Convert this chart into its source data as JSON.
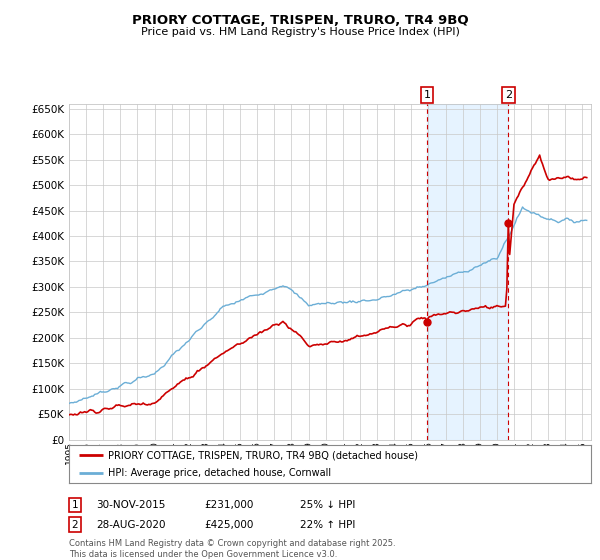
{
  "title": "PRIORY COTTAGE, TRISPEN, TRURO, TR4 9BQ",
  "subtitle": "Price paid vs. HM Land Registry's House Price Index (HPI)",
  "legend_line1": "PRIORY COTTAGE, TRISPEN, TRURO, TR4 9BQ (detached house)",
  "legend_line2": "HPI: Average price, detached house, Cornwall",
  "annotation1_date": "30-NOV-2015",
  "annotation1_price": "£231,000",
  "annotation1_hpi": "25% ↓ HPI",
  "annotation2_date": "28-AUG-2020",
  "annotation2_price": "£425,000",
  "annotation2_hpi": "22% ↑ HPI",
  "footer": "Contains HM Land Registry data © Crown copyright and database right 2025.\nThis data is licensed under the Open Government Licence v3.0.",
  "ylim": [
    0,
    660000
  ],
  "yticks": [
    0,
    50000,
    100000,
    150000,
    200000,
    250000,
    300000,
    350000,
    400000,
    450000,
    500000,
    550000,
    600000,
    650000
  ],
  "hpi_color": "#6baed6",
  "price_color": "#cc0000",
  "vline_color": "#cc0000",
  "span_color": "#dceeff",
  "marker1_x": 2015.917,
  "marker1_y": 231000,
  "marker2_x": 2020.667,
  "marker2_y": 425000,
  "vline1_x": 2015.917,
  "vline2_x": 2020.667,
  "xmin": 1995,
  "xmax": 2025.5
}
